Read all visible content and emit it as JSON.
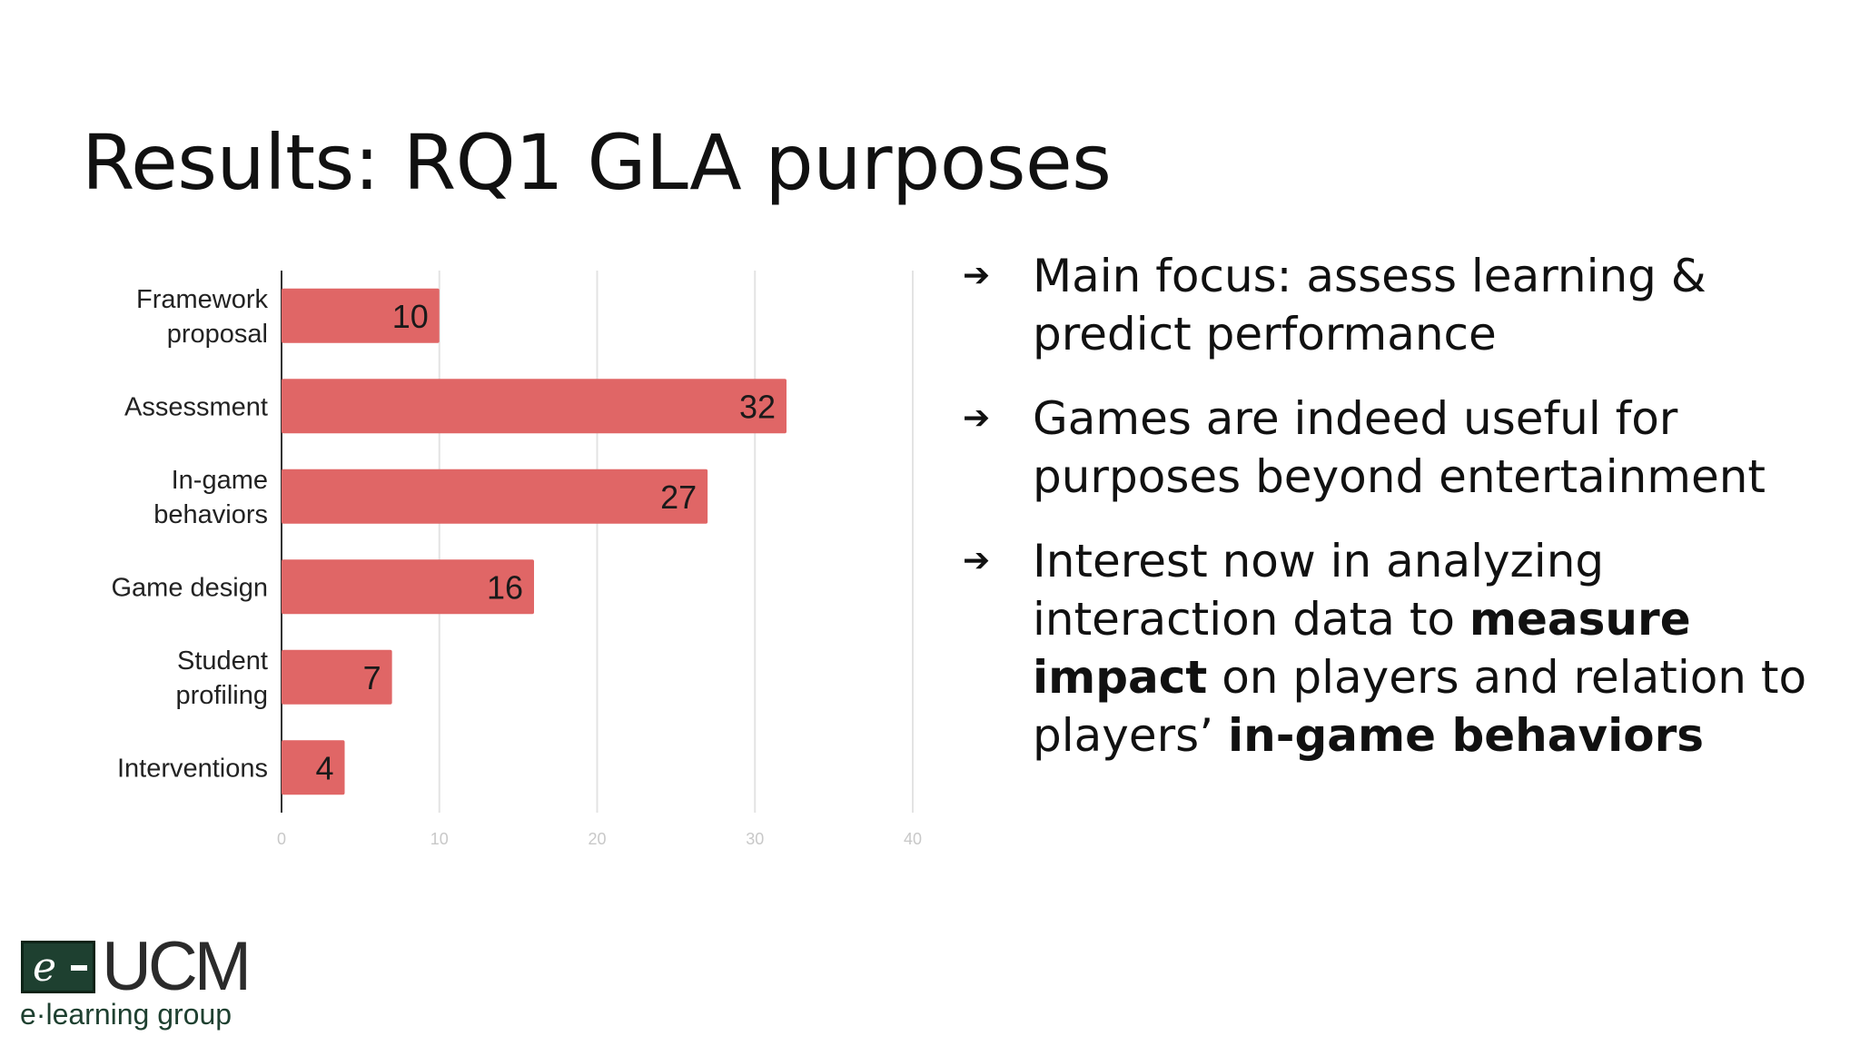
{
  "slide": {
    "title": "Results: RQ1 GLA purposes"
  },
  "bullets": [
    {
      "segments": [
        {
          "text": "Main focus: assess learning & predict performance",
          "bold": false
        }
      ]
    },
    {
      "segments": [
        {
          "text": "Games are indeed useful for purposes beyond entertainment",
          "bold": false
        }
      ]
    },
    {
      "segments": [
        {
          "text": "Interest now in analyzing interaction data to ",
          "bold": false
        },
        {
          "text": "measure impact",
          "bold": true
        },
        {
          "text": " on players and relation to players’ ",
          "bold": false
        },
        {
          "text": "in-game behaviors",
          "bold": true
        }
      ]
    }
  ],
  "bullet_glyph": "➔",
  "logo": {
    "mark": "e",
    "name": "UCM",
    "subtitle": "e·learning group"
  },
  "chart_data": {
    "type": "bar",
    "orientation": "horizontal",
    "categories": [
      [
        "Framework",
        "proposal"
      ],
      [
        "Assessment"
      ],
      [
        "In-game",
        "behaviors"
      ],
      [
        "Game design"
      ],
      [
        "Student",
        "profiling"
      ],
      [
        "Interventions"
      ]
    ],
    "values": [
      10,
      32,
      27,
      16,
      7,
      4
    ],
    "xlim": [
      0,
      40
    ],
    "xticks": [
      0,
      10,
      20,
      30,
      40
    ],
    "grid": true,
    "bar_color": "#e06666",
    "title": "",
    "xlabel": "",
    "ylabel": ""
  }
}
